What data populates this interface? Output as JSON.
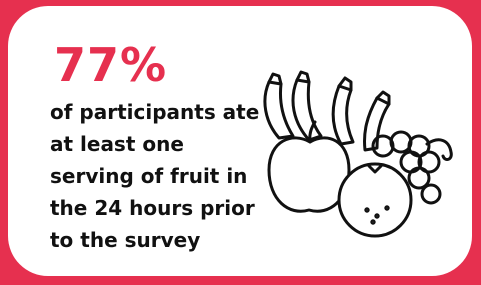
{
  "stat": {
    "headline": "77%",
    "description_lines": [
      "of participants ate",
      "at least one",
      "serving of fruit in",
      "the 24 hours prior",
      "to the survey"
    ]
  }
}
